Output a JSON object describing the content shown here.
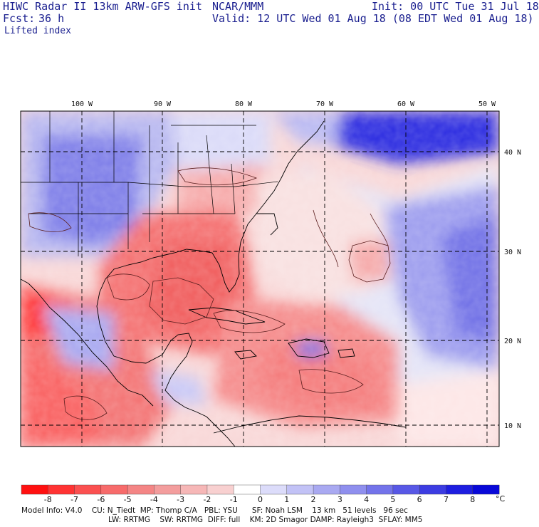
{
  "header": {
    "title": "HIWC Radar II 13km ARW-GFS init",
    "org": "NCAR/MMM",
    "init": "Init: 00 UTC Tue 31 Jul 18",
    "fcst_label": "Fcst:",
    "fcst_value": "36 h",
    "valid": "Valid: 12 UTC Wed 01 Aug 18 (08 EDT Wed 01 Aug 18)",
    "field": "Lifted index"
  },
  "map": {
    "lon_labels": [
      "100 W",
      "90 W",
      "80 W",
      "70 W",
      "60 W",
      "50 W"
    ],
    "lat_labels": [
      "40 N",
      "30 N",
      "20 N",
      "10 N"
    ]
  },
  "colorbar": {
    "ticks": [
      "-8",
      "-7",
      "-6",
      "-5",
      "-4",
      "-3",
      "-2",
      "-1",
      "0",
      "1",
      "2",
      "3",
      "4",
      "5",
      "6",
      "7",
      "8"
    ],
    "unit": "°C",
    "colors": [
      "#ff1010",
      "#ff3333",
      "#fb5050",
      "#f76b6b",
      "#f48585",
      "#f39d9d",
      "#f6b7b7",
      "#f8d0d0",
      "#ffffff",
      "#dcdcfa",
      "#c2c2f6",
      "#a9a9f1",
      "#8f8fee",
      "#7373ea",
      "#5858e6",
      "#3c3ce2",
      "#1e1ee0",
      "#0808d8"
    ]
  },
  "model_info": {
    "line1": "Model Info: V4.0    CU: N_Tiedt  MP: Thomp C/A   PBL: YSU      SF: Noah LSM    13 km   51 levels   96 sec",
    "line2": "LW: RRTMG    SW: RRTMG  DIFF: full    KM: 2D Smagor DAMP: Rayleigh3  SFLAY: MM5"
  }
}
